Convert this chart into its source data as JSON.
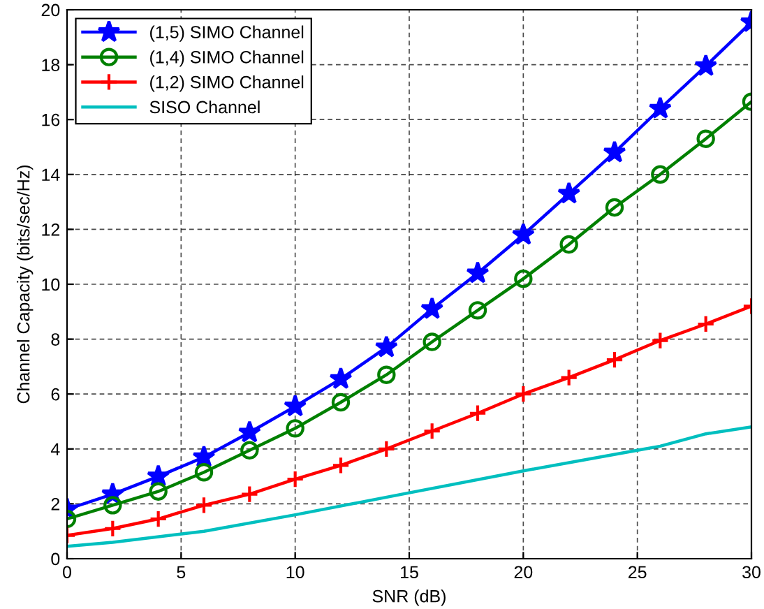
{
  "chart_data": {
    "type": "line",
    "xlabel": "SNR (dB)",
    "ylabel": "Channel Capacity (bits/sec/Hz)",
    "x": [
      0,
      2,
      4,
      6,
      8,
      10,
      12,
      14,
      16,
      18,
      20,
      22,
      24,
      26,
      28,
      30
    ],
    "xlim": [
      0,
      30
    ],
    "xticks": [
      0,
      5,
      10,
      15,
      20,
      25,
      30
    ],
    "ylim": [
      0,
      20
    ],
    "yticks": [
      0,
      2,
      4,
      6,
      8,
      10,
      12,
      14,
      16,
      18,
      20
    ],
    "grid": true,
    "legend": "top left",
    "series": [
      {
        "name": "(1,5) SIMO Channel",
        "color": "#0000ff",
        "marker": "star",
        "values": [
          1.8,
          2.35,
          3.0,
          3.7,
          4.6,
          5.55,
          6.55,
          7.7,
          9.1,
          10.4,
          11.8,
          13.3,
          14.8,
          16.4,
          17.95,
          19.55
        ]
      },
      {
        "name": "(1,4) SIMO Channel",
        "color": "#008000",
        "marker": "circle",
        "values": [
          1.45,
          1.95,
          2.45,
          3.15,
          3.95,
          4.75,
          5.7,
          6.7,
          7.9,
          9.05,
          10.2,
          11.45,
          12.8,
          14.0,
          15.3,
          16.65
        ]
      },
      {
        "name": "(1,2) SIMO Channel",
        "color": "#ff0000",
        "marker": "cross",
        "values": [
          0.85,
          1.1,
          1.45,
          1.95,
          2.35,
          2.9,
          3.4,
          4.0,
          4.65,
          5.3,
          6.0,
          6.6,
          7.25,
          7.95,
          8.55,
          9.2
        ]
      },
      {
        "name": "SISO Channel",
        "color": "#00bfbf",
        "marker": "none",
        "x": [
          0,
          2,
          6,
          10,
          15,
          20,
          25,
          26,
          28,
          30
        ],
        "values": [
          0.45,
          0.6,
          1.0,
          1.6,
          2.4,
          3.2,
          3.95,
          4.1,
          4.55,
          4.8
        ]
      }
    ]
  }
}
